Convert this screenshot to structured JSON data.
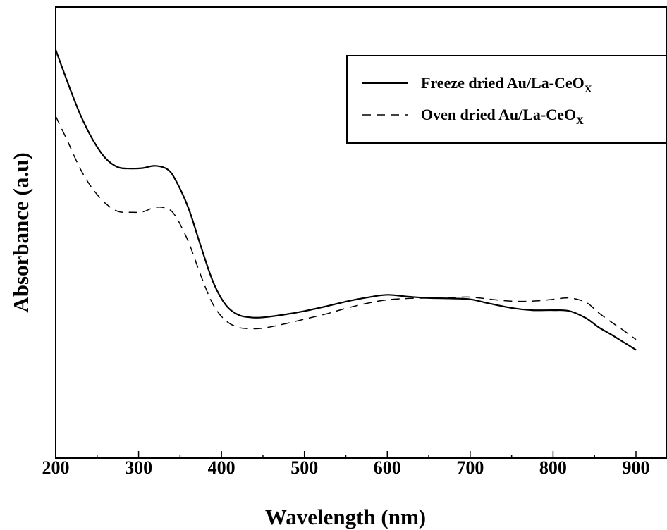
{
  "chart_data": {
    "type": "line",
    "xlabel": "Wavelength (nm)",
    "ylabel": "Absorbance (a.u)",
    "xlim": [
      200,
      940
    ],
    "ylim": [
      0,
      1
    ],
    "x_ticks": [
      "200",
      "300",
      "400",
      "500",
      "600",
      "700",
      "800",
      "900"
    ],
    "grid": false,
    "legend_position": "top-right",
    "series": [
      {
        "name": "Freeze dried Au/La-CeO",
        "name_subscript": "X",
        "style": "solid",
        "color": "#000000",
        "x": [
          200,
          215,
          230,
          245,
          260,
          275,
          290,
          305,
          320,
          335,
          345,
          360,
          375,
          390,
          405,
          420,
          435,
          450,
          475,
          500,
          525,
          550,
          575,
          600,
          625,
          650,
          675,
          700,
          725,
          750,
          775,
          800,
          820,
          840,
          855,
          870,
          885,
          900
        ],
        "y": [
          0.905,
          0.83,
          0.76,
          0.705,
          0.665,
          0.645,
          0.642,
          0.643,
          0.648,
          0.64,
          0.615,
          0.555,
          0.47,
          0.39,
          0.34,
          0.318,
          0.312,
          0.312,
          0.318,
          0.326,
          0.336,
          0.347,
          0.356,
          0.362,
          0.358,
          0.355,
          0.354,
          0.352,
          0.342,
          0.333,
          0.328,
          0.328,
          0.326,
          0.31,
          0.29,
          0.274,
          0.257,
          0.24
        ]
      },
      {
        "name": "Oven dried Au/La-CeO",
        "name_subscript": "X",
        "style": "dashed",
        "color": "#000000",
        "x": [
          200,
          215,
          230,
          245,
          260,
          275,
          290,
          305,
          320,
          335,
          345,
          360,
          375,
          390,
          405,
          420,
          435,
          450,
          475,
          500,
          525,
          550,
          575,
          600,
          625,
          650,
          675,
          700,
          725,
          750,
          775,
          800,
          820,
          840,
          855,
          870,
          885,
          900
        ],
        "y": [
          0.758,
          0.7,
          0.64,
          0.596,
          0.565,
          0.547,
          0.545,
          0.546,
          0.556,
          0.553,
          0.535,
          0.48,
          0.405,
          0.34,
          0.305,
          0.29,
          0.287,
          0.288,
          0.297,
          0.308,
          0.319,
          0.332,
          0.343,
          0.351,
          0.354,
          0.355,
          0.356,
          0.357,
          0.352,
          0.348,
          0.348,
          0.352,
          0.355,
          0.345,
          0.322,
          0.302,
          0.283,
          0.263
        ]
      }
    ]
  }
}
